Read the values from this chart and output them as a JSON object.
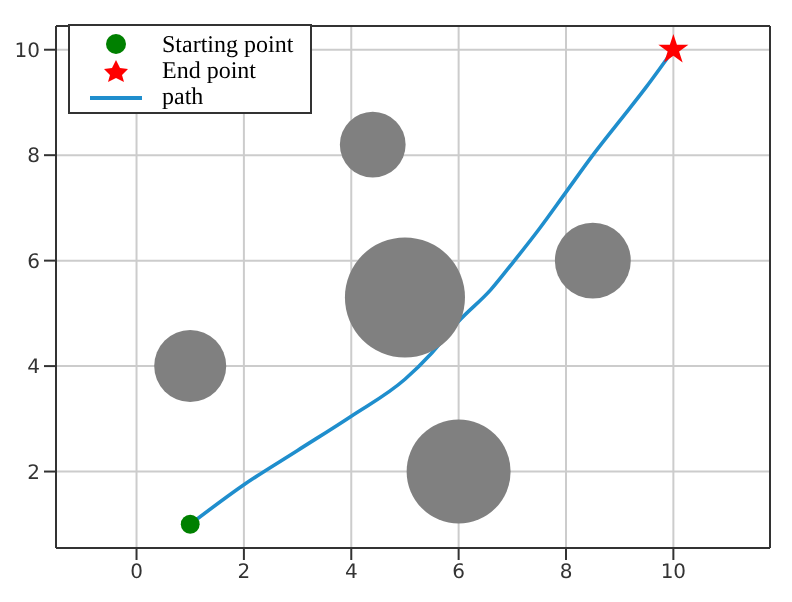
{
  "chart_data": {
    "type": "scatter",
    "xlim": [
      -1.5,
      11.8
    ],
    "ylim": [
      0.55,
      10.45
    ],
    "xticks": [
      0,
      2,
      4,
      6,
      8,
      10
    ],
    "yticks": [
      2,
      4,
      6,
      8,
      10
    ],
    "grid": true,
    "legend": "top left",
    "series": [
      {
        "type": "bubble",
        "color": "#808080",
        "x": [
          1,
          4.4,
          5,
          8.5,
          6
        ],
        "values": [
          4,
          8.2,
          5.3,
          6,
          2
        ],
        "sizes": [
          0.36,
          0.3,
          1,
          0.4,
          0.75
        ]
      },
      {
        "name": "Starting point",
        "color": "#008000",
        "marker": "circle",
        "x": [
          1
        ],
        "values": [
          1
        ]
      },
      {
        "name": "End point",
        "color": "#ff0000",
        "marker": "star",
        "x": [
          10
        ],
        "values": [
          10
        ]
      },
      {
        "type": "line",
        "name": "path",
        "color": "#1f8ecd",
        "line_style": "solid",
        "x": [
          1,
          2,
          3,
          4,
          5,
          5.5,
          6,
          6.6,
          7,
          7.5,
          8,
          8.5,
          9,
          9.5,
          10
        ],
        "values": [
          1,
          1.75,
          2.4,
          3.05,
          3.75,
          4.25,
          4.85,
          5.45,
          5.95,
          6.6,
          7.3,
          8,
          8.65,
          9.3,
          10
        ]
      }
    ]
  }
}
